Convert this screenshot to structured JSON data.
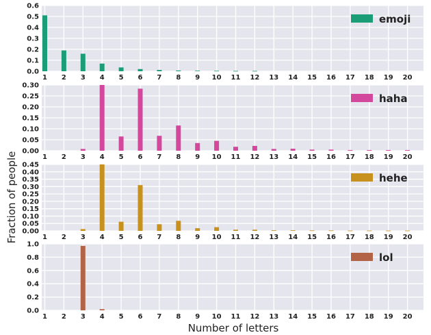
{
  "chart_data": {
    "type": "bar",
    "xlabel": "Number of letters",
    "ylabel": "Fraction of people",
    "x": [
      1,
      2,
      3,
      4,
      5,
      6,
      7,
      8,
      9,
      10,
      11,
      12,
      13,
      14,
      15,
      16,
      17,
      18,
      19,
      20
    ],
    "x_tick_labels": [
      "1",
      "2",
      "3",
      "4",
      "5",
      "6",
      "7",
      "8",
      "9",
      "10",
      "11",
      "12",
      "13",
      "14",
      "15",
      "16",
      "17",
      "18",
      "19",
      "20"
    ],
    "grid": true,
    "legend_position": "top-right",
    "panels": [
      {
        "name": "emoji",
        "color": "#1b9e77",
        "ylim": [
          0,
          0.6
        ],
        "y_ticks": [
          "0.0",
          "0.1",
          "0.2",
          "0.3",
          "0.4",
          "0.5",
          "0.6"
        ],
        "values": [
          0.51,
          0.19,
          0.16,
          0.07,
          0.035,
          0.02,
          0.012,
          0.007,
          0.005,
          0.004,
          0.003,
          0.003,
          0,
          0,
          0,
          0,
          0,
          0,
          0,
          0
        ]
      },
      {
        "name": "haha",
        "color": "#d3489d",
        "ylim": [
          0,
          0.3
        ],
        "y_ticks": [
          "0.00",
          "0.05",
          "0.10",
          "0.15",
          "0.20",
          "0.25",
          "0.30"
        ],
        "values": [
          0,
          0,
          0.008,
          0.3,
          0.065,
          0.283,
          0.068,
          0.115,
          0.035,
          0.045,
          0.018,
          0.022,
          0.008,
          0.009,
          0.005,
          0.005,
          0.003,
          0.003,
          0.003,
          0.003
        ]
      },
      {
        "name": "hehe",
        "color": "#c8911e",
        "ylim": [
          0,
          0.45
        ],
        "y_ticks": [
          "0.00",
          "0.05",
          "0.10",
          "0.15",
          "0.20",
          "0.25",
          "0.30",
          "0.35",
          "0.40",
          "0.45"
        ],
        "values": [
          0,
          0,
          0.012,
          0.45,
          0.062,
          0.31,
          0.045,
          0.068,
          0.018,
          0.025,
          0.008,
          0.008,
          0.004,
          0.004,
          0.003,
          0.003,
          0.002,
          0.002,
          0.002,
          0.002
        ]
      },
      {
        "name": "lol",
        "color": "#b36446",
        "ylim": [
          0,
          1.0
        ],
        "y_ticks": [
          "0.0",
          "0.2",
          "0.4",
          "0.6",
          "0.8",
          "1.0"
        ],
        "values": [
          0,
          0,
          0.97,
          0.018,
          0,
          0,
          0,
          0,
          0,
          0,
          0,
          0,
          0,
          0,
          0,
          0,
          0,
          0,
          0,
          0
        ]
      }
    ]
  }
}
